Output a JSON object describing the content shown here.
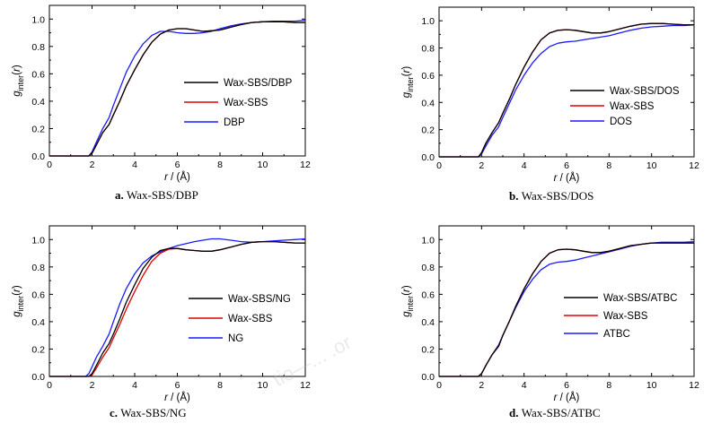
{
  "watermark": "tio—... .or",
  "chart_data": [
    {
      "type": "line",
      "caption_letter": "a.",
      "caption_text": "Wax-SBS/DBP",
      "xlabel_var": "r",
      "xlabel_unit": " / (Å)",
      "ylabel": "g_inter(r)",
      "xlim": [
        0,
        12
      ],
      "ylim": [
        0,
        1.1
      ],
      "xticks": [
        0,
        2,
        4,
        6,
        8,
        10,
        12
      ],
      "yticks": [
        0.0,
        0.2,
        0.4,
        0.6,
        0.8,
        1.0
      ],
      "grid": false,
      "legend_position": "center-right",
      "series": [
        {
          "name": "Wax-SBS/DBP",
          "color": "#000000",
          "x": [
            0,
            1.85,
            2.0,
            2.2,
            2.5,
            2.8,
            3.0,
            3.3,
            3.6,
            4.0,
            4.4,
            4.8,
            5.2,
            5.6,
            6.0,
            6.4,
            6.8,
            7.2,
            7.6,
            8.0,
            8.5,
            9.0,
            9.5,
            10.0,
            10.5,
            11.0,
            11.5,
            12.0
          ],
          "y": [
            0,
            0,
            0.02,
            0.08,
            0.17,
            0.23,
            0.3,
            0.4,
            0.51,
            0.63,
            0.74,
            0.83,
            0.89,
            0.92,
            0.93,
            0.93,
            0.92,
            0.91,
            0.915,
            0.92,
            0.94,
            0.96,
            0.975,
            0.98,
            0.98,
            0.98,
            0.975,
            0.975
          ]
        },
        {
          "name": "Wax-SBS",
          "color": "#e00000",
          "x": [
            0,
            1.85,
            2.0,
            2.2,
            2.5,
            2.8,
            3.0,
            3.3,
            3.6,
            4.0,
            4.4,
            4.8,
            5.2,
            5.6,
            6.0,
            6.4,
            6.8,
            7.2,
            7.6,
            8.0,
            8.5,
            9.0,
            9.5,
            10.0,
            10.5,
            11.0,
            11.5,
            12.0
          ],
          "y": [
            0,
            0,
            0.02,
            0.08,
            0.17,
            0.23,
            0.3,
            0.4,
            0.51,
            0.63,
            0.74,
            0.83,
            0.89,
            0.92,
            0.93,
            0.93,
            0.92,
            0.91,
            0.915,
            0.92,
            0.94,
            0.96,
            0.975,
            0.98,
            0.98,
            0.98,
            0.975,
            0.975
          ]
        },
        {
          "name": "DBP",
          "color": "#1a1aff",
          "x": [
            0,
            1.85,
            2.0,
            2.2,
            2.5,
            2.8,
            3.0,
            3.3,
            3.6,
            4.0,
            4.4,
            4.8,
            5.2,
            5.6,
            6.0,
            6.4,
            6.8,
            7.2,
            7.6,
            8.0,
            8.5,
            9.0,
            9.5,
            10.0,
            10.5,
            11.0,
            11.5,
            12.0
          ],
          "y": [
            0,
            0,
            0.03,
            0.1,
            0.2,
            0.28,
            0.37,
            0.49,
            0.61,
            0.73,
            0.82,
            0.88,
            0.91,
            0.91,
            0.9,
            0.895,
            0.895,
            0.9,
            0.91,
            0.93,
            0.95,
            0.965,
            0.975,
            0.98,
            0.985,
            0.985,
            0.985,
            0.99
          ]
        }
      ]
    },
    {
      "type": "line",
      "caption_letter": "b.",
      "caption_text": "Wax-SBS/DOS",
      "xlabel_var": "r",
      "xlabel_unit": " / (Å)",
      "ylabel": "g_inter(r)",
      "xlim": [
        0,
        12
      ],
      "ylim": [
        0,
        1.1
      ],
      "xticks": [
        0,
        2,
        4,
        6,
        8,
        10,
        12
      ],
      "yticks": [
        0.0,
        0.2,
        0.4,
        0.6,
        0.8,
        1.0
      ],
      "grid": false,
      "legend_position": "bottom-right",
      "series": [
        {
          "name": "Wax-SBS/DOS",
          "color": "#000000",
          "x": [
            0,
            1.85,
            2.0,
            2.2,
            2.5,
            2.8,
            3.0,
            3.3,
            3.6,
            4.0,
            4.4,
            4.8,
            5.2,
            5.6,
            6.0,
            6.4,
            6.8,
            7.2,
            7.6,
            8.0,
            8.5,
            9.0,
            9.5,
            10.0,
            10.5,
            11.0,
            11.5,
            12.0
          ],
          "y": [
            0,
            0,
            0.03,
            0.1,
            0.18,
            0.25,
            0.32,
            0.42,
            0.53,
            0.66,
            0.77,
            0.86,
            0.91,
            0.93,
            0.935,
            0.93,
            0.92,
            0.91,
            0.91,
            0.92,
            0.94,
            0.96,
            0.975,
            0.98,
            0.98,
            0.975,
            0.97,
            0.97
          ]
        },
        {
          "name": "Wax-SBS",
          "color": "#e00000",
          "x": [
            0,
            1.85,
            2.0,
            2.2,
            2.5,
            2.8,
            3.0,
            3.3,
            3.6,
            4.0,
            4.4,
            4.8,
            5.2,
            5.6,
            6.0,
            6.4,
            6.8,
            7.2,
            7.6,
            8.0,
            8.5,
            9.0,
            9.5,
            10.0,
            10.5,
            11.0,
            11.5,
            12.0
          ],
          "y": [
            0,
            0,
            0.03,
            0.1,
            0.18,
            0.25,
            0.32,
            0.42,
            0.53,
            0.66,
            0.77,
            0.86,
            0.91,
            0.93,
            0.935,
            0.93,
            0.92,
            0.91,
            0.91,
            0.92,
            0.94,
            0.96,
            0.975,
            0.98,
            0.98,
            0.975,
            0.97,
            0.97
          ]
        },
        {
          "name": "DOS",
          "color": "#1a1aff",
          "x": [
            0,
            1.85,
            2.0,
            2.2,
            2.5,
            2.8,
            3.0,
            3.3,
            3.6,
            4.0,
            4.4,
            4.8,
            5.2,
            5.6,
            6.0,
            6.4,
            6.8,
            7.2,
            7.6,
            8.0,
            8.5,
            9.0,
            9.5,
            10.0,
            10.5,
            11.0,
            11.5,
            12.0
          ],
          "y": [
            0,
            0,
            0.02,
            0.08,
            0.16,
            0.22,
            0.29,
            0.39,
            0.49,
            0.6,
            0.69,
            0.76,
            0.81,
            0.835,
            0.845,
            0.85,
            0.86,
            0.87,
            0.88,
            0.89,
            0.91,
            0.93,
            0.945,
            0.955,
            0.96,
            0.965,
            0.965,
            0.97
          ]
        }
      ]
    },
    {
      "type": "line",
      "caption_letter": "c.",
      "caption_text": "Wax-SBS/NG",
      "xlabel_var": "r",
      "xlabel_unit": " / (Å)",
      "ylabel": "g_inter(r)",
      "xlim": [
        0,
        12
      ],
      "ylim": [
        0,
        1.1
      ],
      "xticks": [
        0,
        2,
        4,
        6,
        8,
        10,
        12
      ],
      "yticks": [
        0.0,
        0.2,
        0.4,
        0.6,
        0.8,
        1.0
      ],
      "grid": false,
      "legend_position": "center-right",
      "series": [
        {
          "name": "Wax-SBS/NG",
          "color": "#000000",
          "x": [
            0,
            1.85,
            2.0,
            2.2,
            2.5,
            2.8,
            3.0,
            3.3,
            3.6,
            4.0,
            4.4,
            4.8,
            5.2,
            5.6,
            6.0,
            6.4,
            6.8,
            7.2,
            7.6,
            8.0,
            8.5,
            9.0,
            9.5,
            10.0,
            10.5,
            11.0,
            11.5,
            12.0
          ],
          "y": [
            0,
            0,
            0.02,
            0.08,
            0.17,
            0.24,
            0.31,
            0.42,
            0.54,
            0.67,
            0.79,
            0.87,
            0.92,
            0.935,
            0.935,
            0.925,
            0.92,
            0.915,
            0.915,
            0.925,
            0.945,
            0.965,
            0.98,
            0.985,
            0.985,
            0.98,
            0.975,
            0.975
          ]
        },
        {
          "name": "Wax-SBS",
          "color": "#e00000",
          "x": [
            0,
            1.85,
            2.0,
            2.2,
            2.5,
            2.8,
            3.0,
            3.3,
            3.6,
            4.0,
            4.4,
            4.8,
            5.2,
            5.6,
            6.0,
            6.4,
            6.8,
            7.2,
            7.6,
            8.0,
            8.5,
            9.0,
            9.5,
            10.0,
            10.5,
            11.0,
            11.5,
            12.0
          ],
          "y": [
            0,
            0,
            0.01,
            0.06,
            0.14,
            0.21,
            0.28,
            0.38,
            0.49,
            0.62,
            0.74,
            0.84,
            0.9,
            0.93,
            0.935,
            0.925,
            0.92,
            0.915,
            0.915,
            0.925,
            0.945,
            0.965,
            0.98,
            0.985,
            0.985,
            0.98,
            0.975,
            0.975
          ]
        },
        {
          "name": "NG",
          "color": "#1a1aff",
          "x": [
            0,
            1.7,
            1.85,
            2.0,
            2.2,
            2.5,
            2.8,
            3.0,
            3.3,
            3.6,
            4.0,
            4.4,
            4.8,
            5.2,
            5.6,
            6.0,
            6.4,
            6.8,
            7.2,
            7.6,
            8.0,
            8.5,
            9.0,
            9.5,
            10.0,
            10.5,
            11.0,
            11.5,
            12.0
          ],
          "y": [
            0,
            0,
            0.02,
            0.07,
            0.14,
            0.22,
            0.31,
            0.4,
            0.53,
            0.64,
            0.75,
            0.83,
            0.88,
            0.91,
            0.935,
            0.955,
            0.97,
            0.985,
            0.995,
            1.005,
            1.005,
            0.995,
            0.985,
            0.98,
            0.985,
            0.99,
            0.995,
            1.0,
            1.005
          ]
        }
      ]
    },
    {
      "type": "line",
      "caption_letter": "d.",
      "caption_text": "Wax-SBS/ATBC",
      "xlabel_var": "r",
      "xlabel_unit": " / (Å)",
      "ylabel": "g_inter(r)",
      "xlim": [
        0,
        12
      ],
      "ylim": [
        0,
        1.1
      ],
      "xticks": [
        0,
        2,
        4,
        6,
        8,
        10,
        12
      ],
      "yticks": [
        0.0,
        0.2,
        0.4,
        0.6,
        0.8,
        1.0
      ],
      "grid": false,
      "legend_position": "center-right",
      "series": [
        {
          "name": "Wax-SBS/ATBC",
          "color": "#000000",
          "x": [
            0,
            1.85,
            2.0,
            2.2,
            2.5,
            2.8,
            3.0,
            3.3,
            3.6,
            4.0,
            4.4,
            4.8,
            5.2,
            5.6,
            6.0,
            6.4,
            6.8,
            7.2,
            7.6,
            8.0,
            8.5,
            9.0,
            9.5,
            10.0,
            10.5,
            11.0,
            11.5,
            12.0
          ],
          "y": [
            0,
            0,
            0.02,
            0.08,
            0.16,
            0.22,
            0.3,
            0.4,
            0.51,
            0.64,
            0.75,
            0.84,
            0.9,
            0.925,
            0.93,
            0.925,
            0.915,
            0.905,
            0.905,
            0.915,
            0.935,
            0.955,
            0.965,
            0.975,
            0.975,
            0.975,
            0.975,
            0.975
          ]
        },
        {
          "name": "Wax-SBS",
          "color": "#e00000",
          "x": [
            0,
            1.85,
            2.0,
            2.2,
            2.5,
            2.8,
            3.0,
            3.3,
            3.6,
            4.0,
            4.4,
            4.8,
            5.2,
            5.6,
            6.0,
            6.4,
            6.8,
            7.2,
            7.6,
            8.0,
            8.5,
            9.0,
            9.5,
            10.0,
            10.5,
            11.0,
            11.5,
            12.0
          ],
          "y": [
            0,
            0,
            0.02,
            0.08,
            0.16,
            0.22,
            0.3,
            0.4,
            0.51,
            0.64,
            0.75,
            0.84,
            0.9,
            0.925,
            0.93,
            0.925,
            0.915,
            0.905,
            0.905,
            0.915,
            0.935,
            0.955,
            0.965,
            0.975,
            0.975,
            0.975,
            0.975,
            0.975
          ]
        },
        {
          "name": "ATBC",
          "color": "#1a1aff",
          "x": [
            0,
            1.85,
            2.0,
            2.2,
            2.5,
            2.8,
            3.0,
            3.3,
            3.6,
            4.0,
            4.4,
            4.8,
            5.2,
            5.6,
            6.0,
            6.4,
            6.8,
            7.2,
            7.6,
            8.0,
            8.5,
            9.0,
            9.5,
            10.0,
            10.5,
            11.0,
            11.5,
            12.0
          ],
          "y": [
            0,
            0,
            0.02,
            0.08,
            0.16,
            0.23,
            0.3,
            0.4,
            0.5,
            0.62,
            0.71,
            0.78,
            0.82,
            0.835,
            0.84,
            0.85,
            0.865,
            0.88,
            0.895,
            0.91,
            0.93,
            0.95,
            0.965,
            0.975,
            0.98,
            0.98,
            0.98,
            0.985
          ]
        }
      ]
    }
  ]
}
